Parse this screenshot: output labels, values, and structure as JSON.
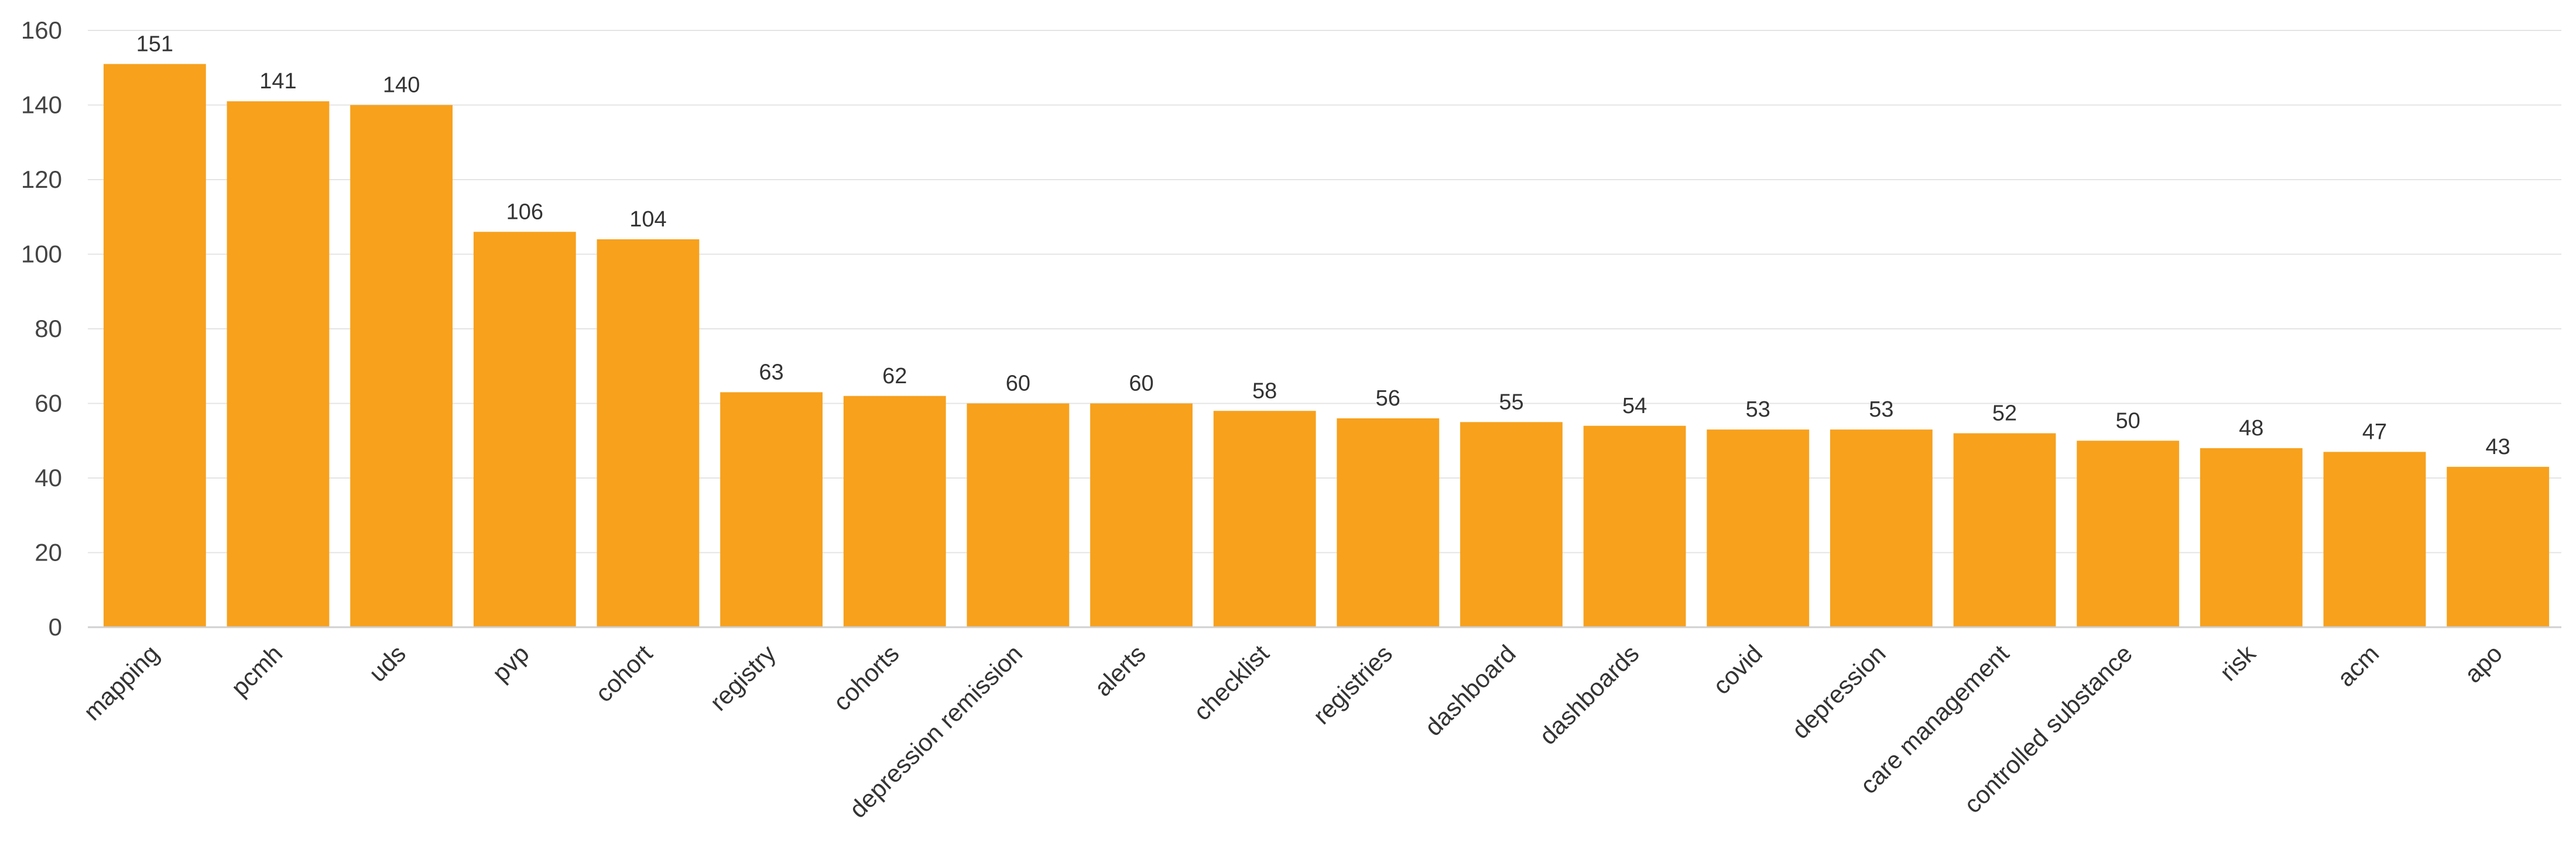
{
  "chart_data": {
    "type": "bar",
    "title": "",
    "xlabel": "",
    "ylabel": "",
    "ylim": [
      0,
      160
    ],
    "yticks": [
      0,
      20,
      40,
      60,
      80,
      100,
      120,
      140,
      160
    ],
    "grid": true,
    "legend": "none",
    "bar_color": "#F7A11D",
    "show_data_labels": true,
    "categories": [
      "mapping",
      "pcmh",
      "uds",
      "pvp",
      "cohort",
      "registry",
      "cohorts",
      "depression remission",
      "alerts",
      "checklist",
      "registries",
      "dashboard",
      "dashboards",
      "covid",
      "depression",
      "care management",
      "controlled substance",
      "risk",
      "acm",
      "apo"
    ],
    "values": [
      151,
      141,
      140,
      106,
      104,
      63,
      62,
      60,
      60,
      58,
      56,
      55,
      54,
      53,
      53,
      52,
      50,
      48,
      47,
      43
    ]
  }
}
